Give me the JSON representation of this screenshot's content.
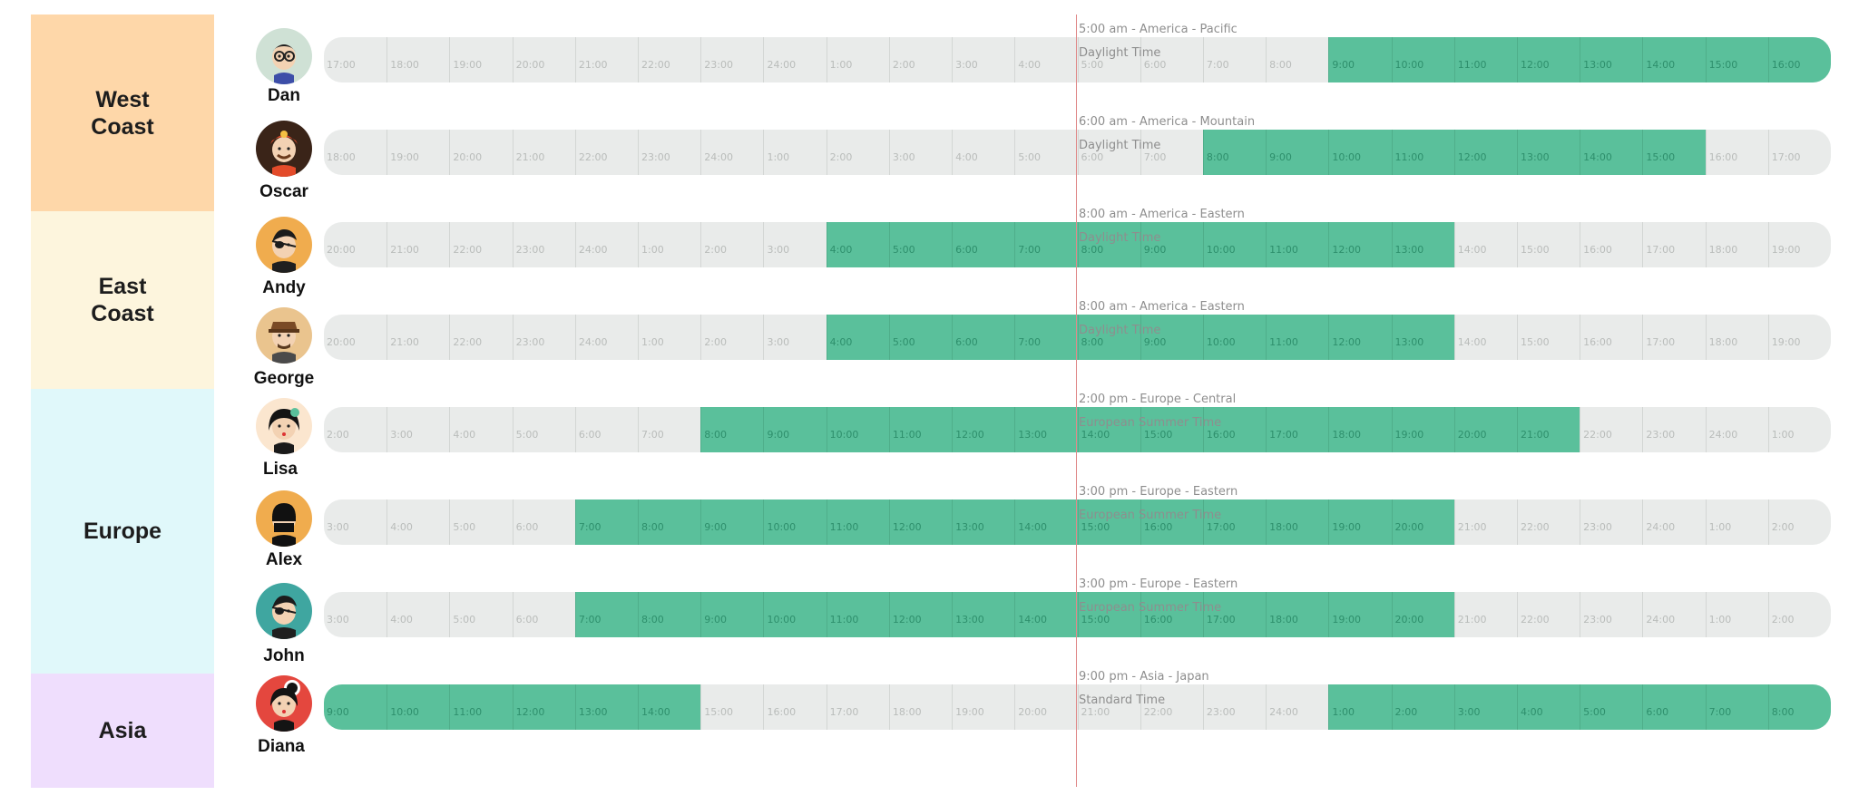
{
  "colors": {
    "track": "#e9ebea",
    "working": "#5ac09b",
    "now_line": "#e08a8a"
  },
  "regions": [
    {
      "label": "West\nCoast",
      "color": "#fed7a9"
    },
    {
      "label": "East\nCoast",
      "color": "#fdf5dd"
    },
    {
      "label": "Europe",
      "color": "#e0f8fa"
    },
    {
      "label": "Asia",
      "color": "#efdefd"
    }
  ],
  "people": [
    {
      "name": "Dan",
      "avatar_icon": "avatar-dan-glasses-icon",
      "avatar_bg": "#cfe1d5",
      "timezone": "5:00 am - America - Pacific Daylight Time",
      "hours": [
        "17:00",
        "18:00",
        "19:00",
        "20:00",
        "21:00",
        "22:00",
        "23:00",
        "24:00",
        "1:00",
        "2:00",
        "3:00",
        "4:00",
        "5:00",
        "6:00",
        "7:00",
        "8:00",
        "9:00",
        "10:00",
        "11:00",
        "12:00",
        "13:00",
        "14:00",
        "15:00",
        "16:00"
      ],
      "work_start": 16,
      "work_end": 24
    },
    {
      "name": "Oscar",
      "avatar_icon": "avatar-oscar-firefighter-icon",
      "avatar_bg": "#3a2418",
      "timezone": "6:00 am - America - Mountain Daylight Time",
      "hours": [
        "18:00",
        "19:00",
        "20:00",
        "21:00",
        "22:00",
        "23:00",
        "24:00",
        "1:00",
        "2:00",
        "3:00",
        "4:00",
        "5:00",
        "6:00",
        "7:00",
        "8:00",
        "9:00",
        "10:00",
        "11:00",
        "12:00",
        "13:00",
        "14:00",
        "15:00",
        "16:00",
        "17:00"
      ],
      "work_start": 14,
      "work_end": 22
    },
    {
      "name": "Andy",
      "avatar_icon": "avatar-andy-eyepatch-icon",
      "avatar_bg": "#f0ac4e",
      "timezone": "8:00 am - America - Eastern Daylight Time",
      "hours": [
        "20:00",
        "21:00",
        "22:00",
        "23:00",
        "24:00",
        "1:00",
        "2:00",
        "3:00",
        "4:00",
        "5:00",
        "6:00",
        "7:00",
        "8:00",
        "9:00",
        "10:00",
        "11:00",
        "12:00",
        "13:00",
        "14:00",
        "15:00",
        "16:00",
        "17:00",
        "18:00",
        "19:00"
      ],
      "work_start": 8,
      "work_end": 18
    },
    {
      "name": "George",
      "avatar_icon": "avatar-george-hat-icon",
      "avatar_bg": "#eac48e",
      "timezone": "8:00 am - America - Eastern Daylight Time",
      "hours": [
        "20:00",
        "21:00",
        "22:00",
        "23:00",
        "24:00",
        "1:00",
        "2:00",
        "3:00",
        "4:00",
        "5:00",
        "6:00",
        "7:00",
        "8:00",
        "9:00",
        "10:00",
        "11:00",
        "12:00",
        "13:00",
        "14:00",
        "15:00",
        "16:00",
        "17:00",
        "18:00",
        "19:00"
      ],
      "work_start": 8,
      "work_end": 18
    },
    {
      "name": "Lisa",
      "avatar_icon": "avatar-lisa-flower-icon",
      "avatar_bg": "#fbe6cf",
      "timezone": "2:00 pm - Europe - Central European Summer Time",
      "hours": [
        "2:00",
        "3:00",
        "4:00",
        "5:00",
        "6:00",
        "7:00",
        "8:00",
        "9:00",
        "10:00",
        "11:00",
        "12:00",
        "13:00",
        "14:00",
        "15:00",
        "16:00",
        "17:00",
        "18:00",
        "19:00",
        "20:00",
        "21:00",
        "22:00",
        "23:00",
        "24:00",
        "1:00"
      ],
      "work_start": 6,
      "work_end": 20
    },
    {
      "name": "Alex",
      "avatar_icon": "avatar-alex-ninja-icon",
      "avatar_bg": "#f0ac4e",
      "timezone": "3:00 pm - Europe - Eastern European Summer Time",
      "hours": [
        "3:00",
        "4:00",
        "5:00",
        "6:00",
        "7:00",
        "8:00",
        "9:00",
        "10:00",
        "11:00",
        "12:00",
        "13:00",
        "14:00",
        "15:00",
        "16:00",
        "17:00",
        "18:00",
        "19:00",
        "20:00",
        "21:00",
        "22:00",
        "23:00",
        "24:00",
        "1:00",
        "2:00"
      ],
      "work_start": 4,
      "work_end": 18
    },
    {
      "name": "John",
      "avatar_icon": "avatar-john-eyepatch-icon",
      "avatar_bg": "#3fa6a0",
      "timezone": "3:00 pm - Europe - Eastern European Summer Time",
      "hours": [
        "3:00",
        "4:00",
        "5:00",
        "6:00",
        "7:00",
        "8:00",
        "9:00",
        "10:00",
        "11:00",
        "12:00",
        "13:00",
        "14:00",
        "15:00",
        "16:00",
        "17:00",
        "18:00",
        "19:00",
        "20:00",
        "21:00",
        "22:00",
        "23:00",
        "24:00",
        "1:00",
        "2:00"
      ],
      "work_start": 4,
      "work_end": 18
    },
    {
      "name": "Diana",
      "avatar_icon": "avatar-diana-bun-icon",
      "avatar_bg": "#e4473e",
      "timezone": "9:00 pm - Asia - Japan Standard Time",
      "hours": [
        "9:00",
        "10:00",
        "11:00",
        "12:00",
        "13:00",
        "14:00",
        "15:00",
        "16:00",
        "17:00",
        "18:00",
        "19:00",
        "20:00",
        "21:00",
        "22:00",
        "23:00",
        "24:00",
        "1:00",
        "2:00",
        "3:00",
        "4:00",
        "5:00",
        "6:00",
        "7:00",
        "8:00"
      ],
      "work_start": 0,
      "work_end": 6,
      "work_start_2": 16,
      "work_end_2": 24
    }
  ]
}
